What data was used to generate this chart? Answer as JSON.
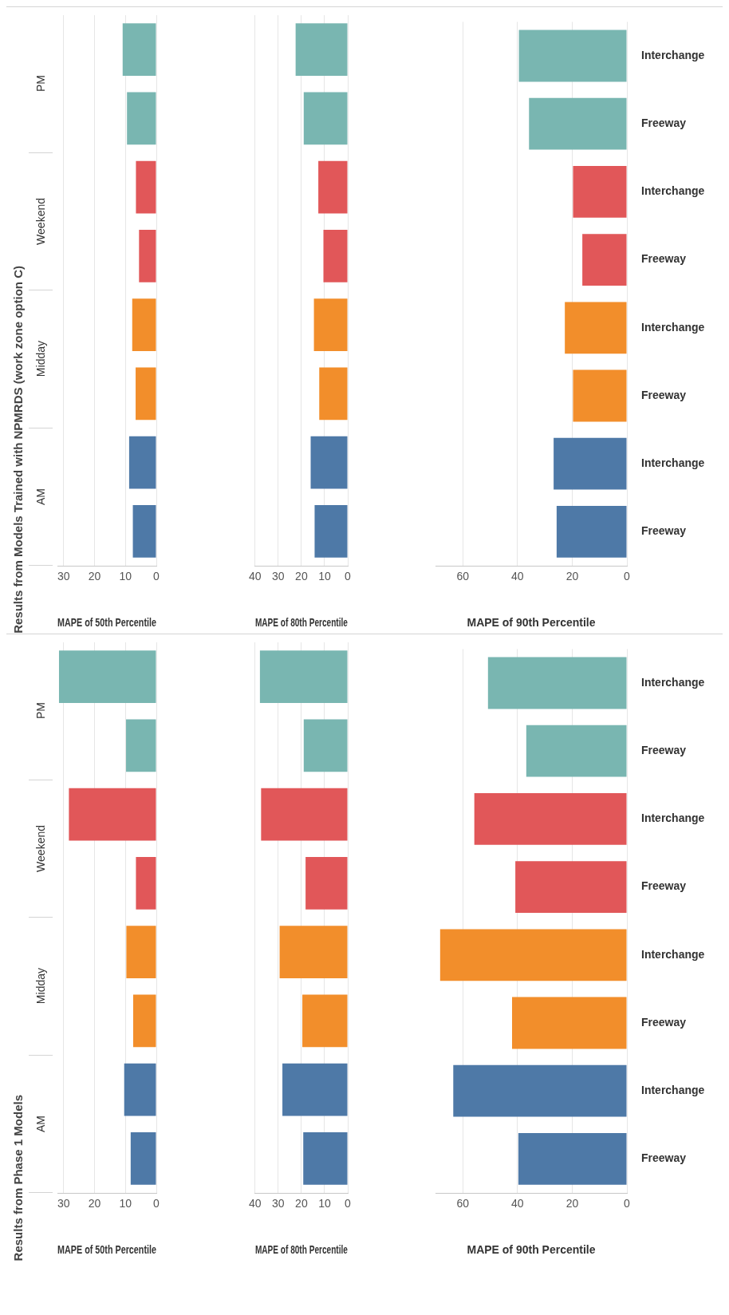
{
  "chart_data": [
    {
      "type": "bar",
      "orientation": "horizontal",
      "title": "Results from Models Trained with NPMRDS (work zone option C)",
      "annotations": [
        "PM",
        "Weekend",
        "Midday",
        "AM"
      ],
      "xlabel": "MAPE of 50th Percentile",
      "categories": [
        null,
        null,
        null,
        null,
        null,
        null,
        null,
        null
      ],
      "values": [
        10.9,
        9.5,
        6.6,
        5.6,
        7.8,
        6.7,
        8.8,
        7.6
      ],
      "colors": [
        "#79b6b1",
        "#79b6b1",
        "#e15759",
        "#e15759",
        "#f28e2b",
        "#f28e2b",
        "#4e79a7",
        "#4e79a7"
      ],
      "xlim": [
        32,
        0
      ],
      "xticks": [
        30,
        20,
        10,
        0
      ],
      "grid": "x",
      "tick_labels": "x"
    },
    {
      "type": "bar",
      "orientation": "horizontal",
      "xlabel": "MAPE of 80th Percentile",
      "categories": [
        null,
        null,
        null,
        null,
        null,
        null,
        null,
        null
      ],
      "values": [
        22.5,
        19.0,
        12.7,
        10.5,
        14.6,
        12.3,
        16.0,
        14.3
      ],
      "colors": [
        "#79b6b1",
        "#79b6b1",
        "#e15759",
        "#e15759",
        "#f28e2b",
        "#f28e2b",
        "#4e79a7",
        "#4e79a7"
      ],
      "xlim": [
        40,
        0
      ],
      "xticks": [
        40,
        30,
        20,
        10,
        0
      ],
      "grid": "x",
      "tick_labels": "x"
    },
    {
      "type": "bar",
      "orientation": "horizontal",
      "xlabel": "MAPE of 90th Percentile",
      "categories": [
        "Interchange",
        "Freeway",
        "Interchange",
        "Freeway",
        "Interchange",
        "Freeway",
        "Interchange",
        "Freeway"
      ],
      "values": [
        39.5,
        35.8,
        19.7,
        16.3,
        22.7,
        19.7,
        26.8,
        25.7
      ],
      "colors": [
        "#79b6b1",
        "#79b6b1",
        "#e15759",
        "#e15759",
        "#f28e2b",
        "#f28e2b",
        "#4e79a7",
        "#4e79a7"
      ],
      "xlim": [
        70,
        0
      ],
      "xticks": [
        60,
        40,
        20,
        0
      ],
      "grid": "x"
    },
    {
      "type": "bar",
      "orientation": "horizontal",
      "title": "Results from Phase 1 Models",
      "annotations": [
        "PM",
        "Weekend",
        "Midday",
        "AM"
      ],
      "xlabel": "MAPE of 50th Percentile",
      "categories": [
        null,
        null,
        null,
        null,
        null,
        null,
        null,
        null
      ],
      "values": [
        31.5,
        9.8,
        28.3,
        6.6,
        9.7,
        7.5,
        10.4,
        8.3
      ],
      "colors": [
        "#79b6b1",
        "#79b6b1",
        "#e15759",
        "#e15759",
        "#f28e2b",
        "#f28e2b",
        "#4e79a7",
        "#4e79a7"
      ],
      "xlim": [
        32,
        0
      ],
      "xticks": [
        30,
        20,
        10,
        0
      ],
      "grid": "x",
      "tick_labels": "x"
    },
    {
      "type": "bar",
      "orientation": "horizontal",
      "xlabel": "MAPE of 80th Percentile",
      "categories": [
        null,
        null,
        null,
        null,
        null,
        null,
        null,
        null
      ],
      "values": [
        37.9,
        19.0,
        37.4,
        18.2,
        29.4,
        19.6,
        28.2,
        19.2
      ],
      "colors": [
        "#79b6b1",
        "#79b6b1",
        "#e15759",
        "#e15759",
        "#f28e2b",
        "#f28e2b",
        "#4e79a7",
        "#4e79a7"
      ],
      "xlim": [
        40,
        0
      ],
      "xticks": [
        40,
        30,
        20,
        10,
        0
      ],
      "grid": "x",
      "tick_labels": "x"
    },
    {
      "type": "bar",
      "orientation": "horizontal",
      "xlabel": "MAPE of 90th Percentile",
      "categories": [
        "Interchange",
        "Freeway",
        "Interchange",
        "Freeway",
        "Interchange",
        "Freeway",
        "Interchange",
        "Freeway"
      ],
      "values": [
        50.8,
        36.8,
        55.8,
        40.8,
        68.3,
        42.0,
        63.5,
        39.7
      ],
      "colors": [
        "#79b6b1",
        "#79b6b1",
        "#e15759",
        "#e15759",
        "#f28e2b",
        "#f28e2b",
        "#4e79a7",
        "#4e79a7"
      ],
      "xlim": [
        70,
        0
      ],
      "xticks": [
        60,
        40,
        20,
        0
      ],
      "grid": "x"
    }
  ]
}
